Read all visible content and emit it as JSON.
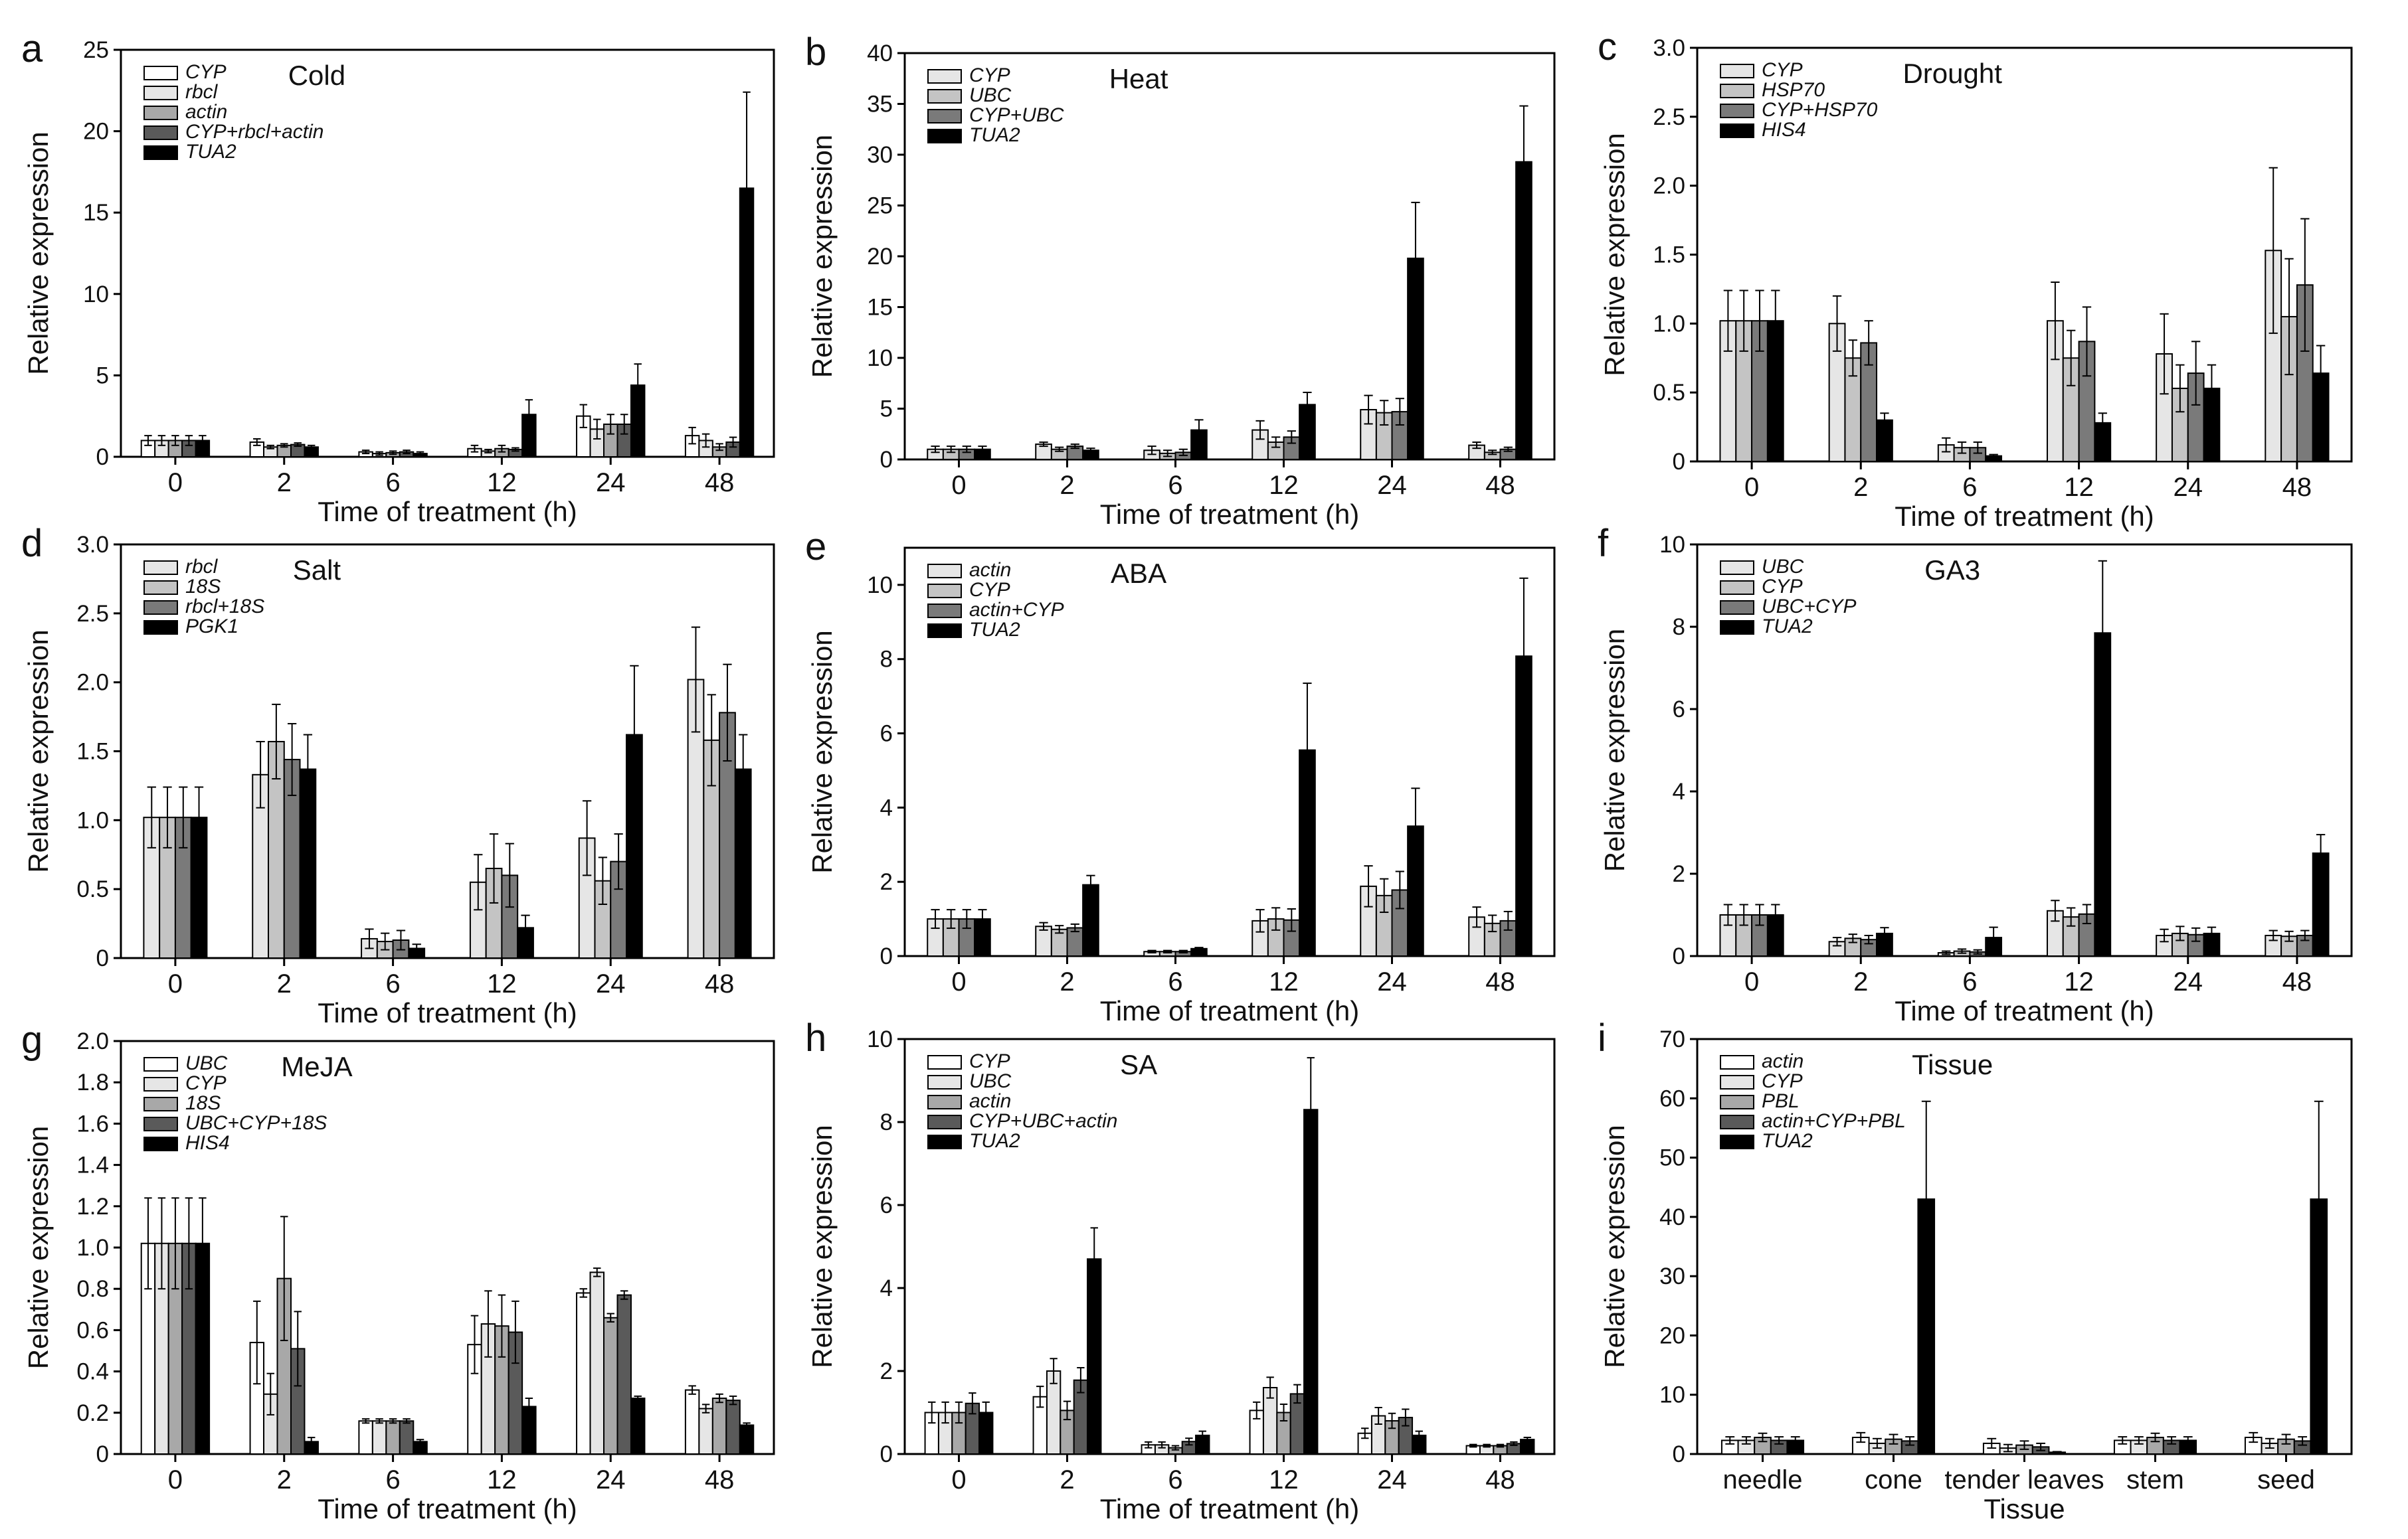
{
  "figure": {
    "series_colors": [
      "#ffffff",
      "#e6e6e6",
      "#a8a8a8",
      "#5a5a5a",
      "#000000"
    ]
  },
  "chart_data": [
    {
      "type": "bar",
      "panel": "a",
      "title": "Cold",
      "xlabel": "Time of treatment (h)",
      "ylabel": "Relative expression",
      "ylim": [
        0,
        25
      ],
      "yticks": [
        "0",
        "5",
        "10",
        "15",
        "20",
        "25"
      ],
      "categories": [
        "0",
        "2",
        "6",
        "12",
        "24",
        "48"
      ],
      "series": [
        {
          "name": "CYP",
          "color": "#ffffff",
          "values": [
            1.0,
            0.9,
            0.3,
            0.5,
            2.5,
            1.3
          ],
          "errors": [
            0.3,
            0.2,
            0.1,
            0.2,
            0.7,
            0.5
          ]
        },
        {
          "name": "rbcl",
          "color": "#e6e6e6",
          "values": [
            1.0,
            0.6,
            0.2,
            0.35,
            1.7,
            1.0
          ],
          "errors": [
            0.3,
            0.1,
            0.1,
            0.1,
            0.6,
            0.4
          ]
        },
        {
          "name": "actin",
          "color": "#a8a8a8",
          "values": [
            1.0,
            0.7,
            0.25,
            0.5,
            2.0,
            0.6
          ],
          "errors": [
            0.3,
            0.1,
            0.1,
            0.2,
            0.6,
            0.2
          ]
        },
        {
          "name": "CYP+rbcl+actin",
          "color": "#5a5a5a",
          "values": [
            1.0,
            0.75,
            0.3,
            0.45,
            2.0,
            0.9
          ],
          "errors": [
            0.3,
            0.1,
            0.1,
            0.1,
            0.6,
            0.3
          ]
        },
        {
          "name": "TUA2",
          "color": "#000000",
          "values": [
            1.0,
            0.6,
            0.2,
            2.6,
            4.4,
            16.5
          ],
          "errors": [
            0.3,
            0.1,
            0.1,
            0.9,
            1.3,
            5.9
          ]
        }
      ]
    },
    {
      "type": "bar",
      "panel": "b",
      "title": "Heat",
      "xlabel": "Time of treatment (h)",
      "ylabel": "Relative expression",
      "ylim": [
        0,
        40
      ],
      "yticks": [
        "0",
        "5",
        "10",
        "15",
        "20",
        "25",
        "30",
        "35",
        "40"
      ],
      "categories": [
        "0",
        "2",
        "6",
        "12",
        "24",
        "48"
      ],
      "series": [
        {
          "name": "CYP",
          "color": "#e6e6e6",
          "values": [
            1.0,
            1.5,
            0.9,
            2.9,
            4.9,
            1.4
          ],
          "errors": [
            0.3,
            0.2,
            0.4,
            0.9,
            1.4,
            0.3
          ]
        },
        {
          "name": "UBC",
          "color": "#c4c4c4",
          "values": [
            1.0,
            1.0,
            0.6,
            1.7,
            4.6,
            0.7
          ],
          "errors": [
            0.3,
            0.2,
            0.3,
            0.5,
            1.2,
            0.2
          ]
        },
        {
          "name": "CYP+UBC",
          "color": "#7a7a7a",
          "values": [
            1.0,
            1.3,
            0.7,
            2.2,
            4.7,
            1.0
          ],
          "errors": [
            0.3,
            0.2,
            0.3,
            0.6,
            1.3,
            0.2
          ]
        },
        {
          "name": "TUA2",
          "color": "#000000",
          "values": [
            1.0,
            0.9,
            2.9,
            5.4,
            19.8,
            29.3
          ],
          "errors": [
            0.3,
            0.2,
            1.0,
            1.2,
            5.5,
            5.5
          ]
        }
      ]
    },
    {
      "type": "bar",
      "panel": "c",
      "title": "Drought",
      "xlabel": "Time of treatment (h)",
      "ylabel": "Relative expression",
      "ylim": [
        0,
        3.0
      ],
      "yticks": [
        "0",
        "0.5",
        "1.0",
        "1.5",
        "2.0",
        "2.5",
        "3.0"
      ],
      "categories": [
        "0",
        "2",
        "6",
        "12",
        "24",
        "48"
      ],
      "series": [
        {
          "name": "CYP",
          "color": "#e6e6e6",
          "values": [
            1.02,
            1.0,
            0.12,
            1.02,
            0.78,
            1.53
          ],
          "errors": [
            0.22,
            0.2,
            0.05,
            0.28,
            0.29,
            0.6
          ]
        },
        {
          "name": "HSP70",
          "color": "#c4c4c4",
          "values": [
            1.02,
            0.75,
            0.1,
            0.75,
            0.53,
            1.05
          ],
          "errors": [
            0.22,
            0.13,
            0.04,
            0.2,
            0.17,
            0.42
          ]
        },
        {
          "name": "CYP+HSP70",
          "color": "#7a7a7a",
          "values": [
            1.02,
            0.86,
            0.1,
            0.87,
            0.64,
            1.28
          ],
          "errors": [
            0.22,
            0.16,
            0.04,
            0.25,
            0.23,
            0.48
          ]
        },
        {
          "name": "HIS4",
          "color": "#000000",
          "values": [
            1.02,
            0.3,
            0.04,
            0.28,
            0.53,
            0.64
          ],
          "errors": [
            0.22,
            0.05,
            0.01,
            0.07,
            0.17,
            0.2
          ]
        }
      ]
    },
    {
      "type": "bar",
      "panel": "d",
      "title": "Salt",
      "xlabel": "Time of treatment (h)",
      "ylabel": "Relative expression",
      "ylim": [
        0,
        3.0
      ],
      "yticks": [
        "0",
        "0.5",
        "1.0",
        "1.5",
        "2.0",
        "2.5",
        "3.0"
      ],
      "categories": [
        "0",
        "2",
        "6",
        "12",
        "24",
        "48"
      ],
      "series": [
        {
          "name": "rbcl",
          "color": "#e6e6e6",
          "values": [
            1.02,
            1.33,
            0.14,
            0.55,
            0.87,
            2.02
          ],
          "errors": [
            0.22,
            0.24,
            0.07,
            0.2,
            0.27,
            0.38
          ]
        },
        {
          "name": "18S",
          "color": "#c4c4c4",
          "values": [
            1.02,
            1.57,
            0.12,
            0.65,
            0.56,
            1.58
          ],
          "errors": [
            0.22,
            0.27,
            0.06,
            0.25,
            0.17,
            0.33
          ]
        },
        {
          "name": "rbcl+18S",
          "color": "#7a7a7a",
          "values": [
            1.02,
            1.44,
            0.13,
            0.6,
            0.7,
            1.78
          ],
          "errors": [
            0.22,
            0.26,
            0.07,
            0.23,
            0.2,
            0.35
          ]
        },
        {
          "name": "PGK1",
          "color": "#000000",
          "values": [
            1.02,
            1.37,
            0.07,
            0.22,
            1.62,
            1.37
          ],
          "errors": [
            0.22,
            0.25,
            0.03,
            0.09,
            0.5,
            0.25
          ]
        }
      ]
    },
    {
      "type": "bar",
      "panel": "e",
      "title": "ABA",
      "xlabel": "Time of treatment (h)",
      "ylabel": "Relative expression",
      "ylim": [
        0,
        11
      ],
      "yticks": [
        "0",
        "2",
        "4",
        "6",
        "8",
        "10"
      ],
      "categories": [
        "0",
        "2",
        "6",
        "12",
        "24",
        "48"
      ],
      "series": [
        {
          "name": "actin",
          "color": "#e6e6e6",
          "values": [
            1.0,
            0.8,
            0.12,
            0.95,
            1.88,
            1.05
          ],
          "errors": [
            0.25,
            0.1,
            0.03,
            0.3,
            0.55,
            0.27
          ]
        },
        {
          "name": "CYP",
          "color": "#c4c4c4",
          "values": [
            1.0,
            0.72,
            0.12,
            1.0,
            1.63,
            0.88
          ],
          "errors": [
            0.25,
            0.1,
            0.03,
            0.3,
            0.45,
            0.22
          ]
        },
        {
          "name": "actin+CYP",
          "color": "#7a7a7a",
          "values": [
            1.0,
            0.76,
            0.12,
            0.97,
            1.78,
            0.95
          ],
          "errors": [
            0.25,
            0.1,
            0.03,
            0.3,
            0.5,
            0.25
          ]
        },
        {
          "name": "TUA2",
          "color": "#000000",
          "values": [
            1.0,
            1.92,
            0.2,
            5.55,
            3.5,
            8.08
          ],
          "errors": [
            0.25,
            0.25,
            0.03,
            1.8,
            1.02,
            2.1
          ]
        }
      ]
    },
    {
      "type": "bar",
      "panel": "f",
      "title": "GA3",
      "xlabel": "Time of treatment (h)",
      "ylabel": "Relative expression",
      "ylim": [
        0,
        10
      ],
      "yticks": [
        "0",
        "2",
        "4",
        "6",
        "8",
        "10"
      ],
      "categories": [
        "0",
        "2",
        "6",
        "12",
        "24",
        "48"
      ],
      "series": [
        {
          "name": "UBC",
          "color": "#e6e6e6",
          "values": [
            1.0,
            0.35,
            0.08,
            1.1,
            0.5,
            0.5
          ],
          "errors": [
            0.25,
            0.1,
            0.04,
            0.25,
            0.15,
            0.12
          ]
        },
        {
          "name": "CYP",
          "color": "#c4c4c4",
          "values": [
            1.0,
            0.43,
            0.12,
            0.95,
            0.55,
            0.48
          ],
          "errors": [
            0.25,
            0.1,
            0.05,
            0.22,
            0.17,
            0.12
          ]
        },
        {
          "name": "UBC+CYP",
          "color": "#7a7a7a",
          "values": [
            1.0,
            0.4,
            0.1,
            1.02,
            0.52,
            0.5
          ],
          "errors": [
            0.25,
            0.1,
            0.05,
            0.23,
            0.16,
            0.12
          ]
        },
        {
          "name": "TUA2",
          "color": "#000000",
          "values": [
            1.0,
            0.55,
            0.45,
            7.85,
            0.55,
            2.5
          ],
          "errors": [
            0.25,
            0.14,
            0.25,
            1.75,
            0.15,
            0.45
          ]
        }
      ]
    },
    {
      "type": "bar",
      "panel": "g",
      "title": "MeJA",
      "xlabel": "Time of treatment (h)",
      "ylabel": "Relative expression",
      "ylim": [
        0,
        2.0
      ],
      "yticks": [
        "0",
        "0.2",
        "0.4",
        "0.6",
        "0.8",
        "1.0",
        "1.2",
        "1.4",
        "1.6",
        "1.8",
        "2.0"
      ],
      "categories": [
        "0",
        "2",
        "6",
        "12",
        "24",
        "48"
      ],
      "series": [
        {
          "name": "UBC",
          "color": "#ffffff",
          "values": [
            1.02,
            0.54,
            0.16,
            0.53,
            0.78,
            0.31
          ],
          "errors": [
            0.22,
            0.2,
            0.01,
            0.14,
            0.02,
            0.02
          ]
        },
        {
          "name": "CYP",
          "color": "#e6e6e6",
          "values": [
            1.02,
            0.29,
            0.16,
            0.63,
            0.88,
            0.22
          ],
          "errors": [
            0.22,
            0.1,
            0.01,
            0.16,
            0.02,
            0.02
          ]
        },
        {
          "name": "18S",
          "color": "#a8a8a8",
          "values": [
            1.02,
            0.85,
            0.16,
            0.62,
            0.66,
            0.27
          ],
          "errors": [
            0.22,
            0.3,
            0.01,
            0.15,
            0.02,
            0.02
          ]
        },
        {
          "name": "UBC+CYP+18S",
          "color": "#5a5a5a",
          "values": [
            1.02,
            0.51,
            0.16,
            0.59,
            0.77,
            0.26
          ],
          "errors": [
            0.22,
            0.18,
            0.01,
            0.15,
            0.02,
            0.02
          ]
        },
        {
          "name": "HIS4",
          "color": "#000000",
          "values": [
            1.02,
            0.06,
            0.06,
            0.23,
            0.27,
            0.14
          ],
          "errors": [
            0.22,
            0.02,
            0.01,
            0.04,
            0.01,
            0.01
          ]
        }
      ]
    },
    {
      "type": "bar",
      "panel": "h",
      "title": "SA",
      "xlabel": "Time of treatment (h)",
      "ylabel": "Relative expression",
      "ylim": [
        0,
        10
      ],
      "yticks": [
        "0",
        "2",
        "4",
        "6",
        "8",
        "10"
      ],
      "categories": [
        "0",
        "2",
        "6",
        "12",
        "24",
        "48"
      ],
      "series": [
        {
          "name": "CYP",
          "color": "#ffffff",
          "values": [
            1.0,
            1.38,
            0.22,
            1.05,
            0.5,
            0.2
          ],
          "errors": [
            0.25,
            0.25,
            0.07,
            0.2,
            0.12,
            0.03
          ]
        },
        {
          "name": "UBC",
          "color": "#e6e6e6",
          "values": [
            1.0,
            2.0,
            0.22,
            1.6,
            0.92,
            0.2
          ],
          "errors": [
            0.25,
            0.3,
            0.07,
            0.25,
            0.2,
            0.03
          ]
        },
        {
          "name": "actin",
          "color": "#a8a8a8",
          "values": [
            1.0,
            1.05,
            0.15,
            1.0,
            0.8,
            0.2
          ],
          "errors": [
            0.25,
            0.22,
            0.05,
            0.2,
            0.18,
            0.03
          ]
        },
        {
          "name": "CYP+UBC+actin",
          "color": "#5a5a5a",
          "values": [
            1.22,
            1.78,
            0.3,
            1.45,
            0.88,
            0.25
          ],
          "errors": [
            0.25,
            0.3,
            0.08,
            0.22,
            0.2,
            0.04
          ]
        },
        {
          "name": "TUA2",
          "color": "#000000",
          "values": [
            1.0,
            4.7,
            0.45,
            8.3,
            0.45,
            0.35
          ],
          "errors": [
            0.25,
            0.75,
            0.1,
            1.25,
            0.1,
            0.05
          ]
        }
      ]
    },
    {
      "type": "bar",
      "panel": "i",
      "title": "Tissue",
      "xlabel": "Tissue",
      "ylabel": "Relative expression",
      "ylim": [
        0,
        70
      ],
      "yticks": [
        "0",
        "10",
        "20",
        "30",
        "40",
        "50",
        "60",
        "70"
      ],
      "categories": [
        "needle",
        "cone",
        "tender leaves",
        "stem",
        "seed"
      ],
      "series": [
        {
          "name": "actin",
          "color": "#ffffff",
          "values": [
            2.3,
            2.8,
            1.8,
            2.3,
            2.8
          ],
          "errors": [
            0.6,
            0.8,
            0.8,
            0.6,
            0.8
          ]
        },
        {
          "name": "CYP",
          "color": "#e6e6e6",
          "values": [
            2.3,
            1.8,
            1.0,
            2.3,
            1.8
          ],
          "errors": [
            0.6,
            0.8,
            0.6,
            0.6,
            0.8
          ]
        },
        {
          "name": "PBL",
          "color": "#a8a8a8",
          "values": [
            2.8,
            2.5,
            1.5,
            2.8,
            2.5
          ],
          "errors": [
            0.7,
            0.8,
            0.7,
            0.7,
            0.8
          ]
        },
        {
          "name": "actin+CYP+PBL",
          "color": "#5a5a5a",
          "values": [
            2.3,
            2.2,
            1.2,
            2.3,
            2.2
          ],
          "errors": [
            0.6,
            0.7,
            0.6,
            0.6,
            0.7
          ]
        },
        {
          "name": "TUA2",
          "color": "#000000",
          "values": [
            2.3,
            43.0,
            0.3,
            2.3,
            43.0
          ],
          "errors": [
            0.6,
            16.5,
            0.1,
            0.6,
            16.5
          ]
        }
      ]
    }
  ]
}
